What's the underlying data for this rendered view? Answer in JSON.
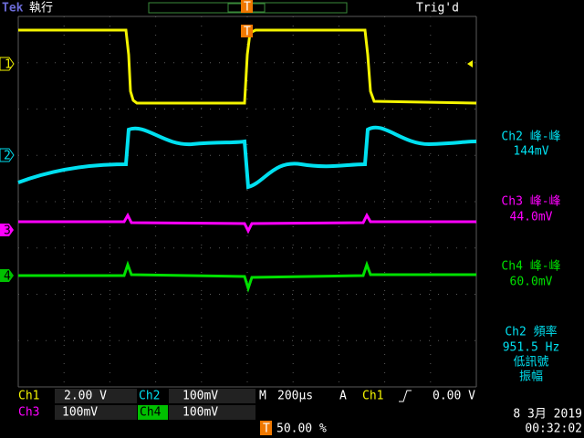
{
  "header": {
    "brand": "Tek",
    "state": "執行",
    "trigger_state": "Trig'd"
  },
  "markers": {
    "ch1": "1",
    "ch2": "2",
    "ch3": "3",
    "ch4": "4",
    "trigger": "T"
  },
  "measurements": [
    {
      "label": "Ch2 峰-峰",
      "value": "144mV"
    },
    {
      "label": "Ch3 峰-峰",
      "value": "44.0mV"
    },
    {
      "label": "Ch4 峰-峰",
      "value": "60.0mV"
    },
    {
      "label": "Ch2 頻率",
      "value": "951.5 Hz",
      "note1": "低訊號",
      "note2": "振幅"
    }
  ],
  "status": {
    "ch1": "Ch1",
    "ch1_scale": "2.00 V",
    "ch2": "Ch2",
    "ch2_scale": "100mV",
    "mode": "M",
    "timebase": "200µs",
    "trigger_mode": "A",
    "trigger_source": "Ch1",
    "trigger_level": "0.00 V",
    "ch3": "Ch3",
    "ch3_scale": "100mV",
    "ch4": "Ch4",
    "ch4_scale": "100mV",
    "trigger_position": "50.00 %",
    "date": "8 3月  2019",
    "time": "00:32:02"
  }
}
